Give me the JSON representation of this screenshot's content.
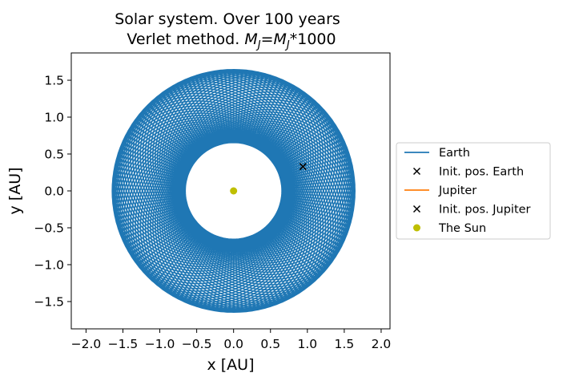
{
  "chart_data": {
    "type": "line",
    "title_line1": "Solar system. Over 100 years",
    "title_line2_prefix": "Verlet method. ",
    "title_line2_formula_lhs": "M",
    "title_line2_formula_lhs_sub": "J",
    "title_line2_eq": "=",
    "title_line2_formula_rhs": "M",
    "title_line2_formula_rhs_sub": "J",
    "title_line2_suffix": "*1000",
    "xlabel": "x [AU]",
    "ylabel": "y [AU]",
    "xlim": [
      -2.2,
      2.12
    ],
    "ylim": [
      -1.87,
      1.87
    ],
    "xticks": [
      "−2.0",
      "−1.5",
      "−1.0",
      "−0.5",
      "0.0",
      "0.5",
      "1.0",
      "1.5",
      "2.0"
    ],
    "xtick_values": [
      -2.0,
      -1.5,
      -1.0,
      -0.5,
      0.0,
      0.5,
      1.0,
      1.5,
      2.0
    ],
    "yticks": [
      "−1.5",
      "−1.0",
      "−0.5",
      "0.0",
      "0.5",
      "1.0",
      "1.5"
    ],
    "ytick_values": [
      -1.5,
      -1.0,
      -0.5,
      0.0,
      0.5,
      1.0,
      1.5
    ],
    "grid": false,
    "legend_position": "outside-right",
    "series": [
      {
        "name": "Earth",
        "kind": "line",
        "color": "#1f77b4",
        "orbit": {
          "semi_major_axis": 1.15,
          "eccentricity": 0.43,
          "precession_cycles": 11,
          "turns": 100
        }
      },
      {
        "name": "Init. pos. Earth",
        "kind": "marker",
        "marker": "x",
        "color": "#000000",
        "points": [
          [
            0.94,
            0.33
          ]
        ]
      },
      {
        "name": "Jupiter",
        "kind": "line",
        "color": "#ff7f0e",
        "points": []
      },
      {
        "name": "Init. pos. Jupiter",
        "kind": "marker",
        "marker": "x",
        "color": "#000000",
        "points": []
      },
      {
        "name": "The Sun",
        "kind": "marker",
        "marker": "o",
        "color": "#bfbf00",
        "points": [
          [
            0.0,
            0.0
          ]
        ]
      }
    ]
  }
}
